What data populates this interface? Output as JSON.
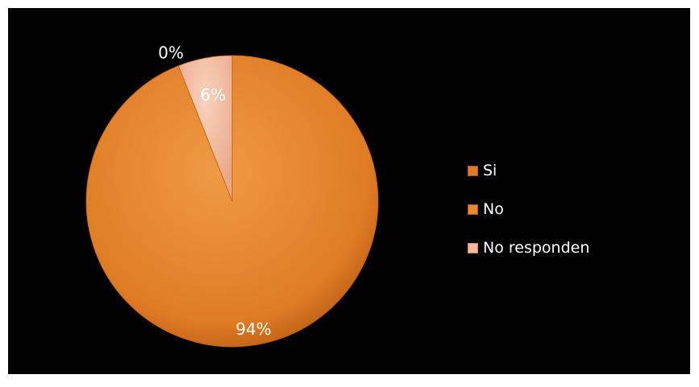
{
  "chart_data": {
    "type": "pie",
    "categories": [
      "Si",
      "No",
      "No responden"
    ],
    "values": [
      94,
      0,
      6
    ],
    "data_labels": [
      "94%",
      "0%",
      "6%"
    ],
    "colors": [
      "#e07b25",
      "#e98a2e",
      "#f3b79b"
    ],
    "label_colors": [
      "#ffffff",
      "#ffffff",
      "#ffffff"
    ],
    "legend_position": "right",
    "background": "#000000"
  }
}
